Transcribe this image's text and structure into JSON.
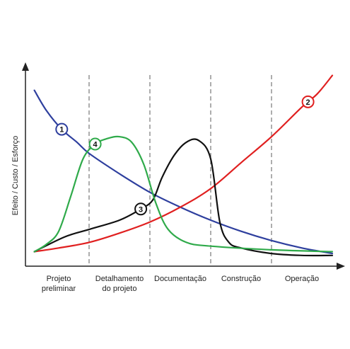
{
  "chart_data": {
    "type": "line",
    "title": "",
    "ylabel": "Efeito / Custo / Esforço",
    "xlabel": "",
    "phases": [
      "Projeto preliminar",
      "Detalhamento do projeto",
      "Documentação",
      "Construção",
      "Operação"
    ],
    "phase_label_lines": [
      [
        "Projeto",
        "preliminar"
      ],
      [
        "Detalhamento",
        "do projeto"
      ],
      [
        "Documentação"
      ],
      [
        "Construção"
      ],
      [
        "Operação"
      ]
    ],
    "phase_boundaries": [
      1,
      2,
      3,
      4
    ],
    "xlim": [
      0,
      5.0
    ],
    "ylim": [
      0,
      100
    ],
    "grid": false,
    "series": [
      {
        "marker": "1",
        "color": "#2e3f9e",
        "marker_x": 0.55,
        "x": [
          0.1,
          0.3,
          0.55,
          0.8,
          1.0,
          1.5,
          2.0,
          2.5,
          3.0,
          3.5,
          4.0,
          4.5,
          5.0
        ],
        "y": [
          91,
          80,
          70,
          63,
          57,
          46,
          36,
          28,
          21,
          15,
          10,
          6,
          3
        ]
      },
      {
        "marker": "2",
        "color": "#e02020",
        "marker_x": 4.6,
        "x": [
          0.1,
          0.5,
          1.0,
          1.5,
          2.0,
          2.5,
          3.0,
          3.5,
          4.0,
          4.5,
          4.75,
          5.0
        ],
        "y": [
          4,
          6,
          9,
          14,
          20,
          28,
          38,
          52,
          66,
          82,
          89,
          99
        ]
      },
      {
        "marker": "3",
        "color": "#111111",
        "marker_x": 1.85,
        "x": [
          0.1,
          0.6,
          1.0,
          1.5,
          1.85,
          2.05,
          2.2,
          2.4,
          2.6,
          2.8,
          3.0,
          3.15,
          3.3,
          3.5,
          4.0,
          4.5,
          5.0
        ],
        "y": [
          4,
          12,
          16,
          21,
          27,
          32,
          44,
          56,
          63,
          64,
          54,
          20,
          9,
          6,
          3,
          2,
          2
        ]
      },
      {
        "marker": "4",
        "color": "#2faa4a",
        "marker_x": 1.1,
        "x": [
          0.1,
          0.3,
          0.5,
          0.7,
          0.9,
          1.1,
          1.3,
          1.5,
          1.7,
          1.9,
          2.1,
          2.3,
          2.6,
          3.0,
          4.0,
          5.0
        ],
        "y": [
          4,
          8,
          15,
          34,
          54,
          62,
          65,
          66,
          63,
          51,
          30,
          16,
          9,
          7,
          5,
          4
        ]
      }
    ]
  }
}
